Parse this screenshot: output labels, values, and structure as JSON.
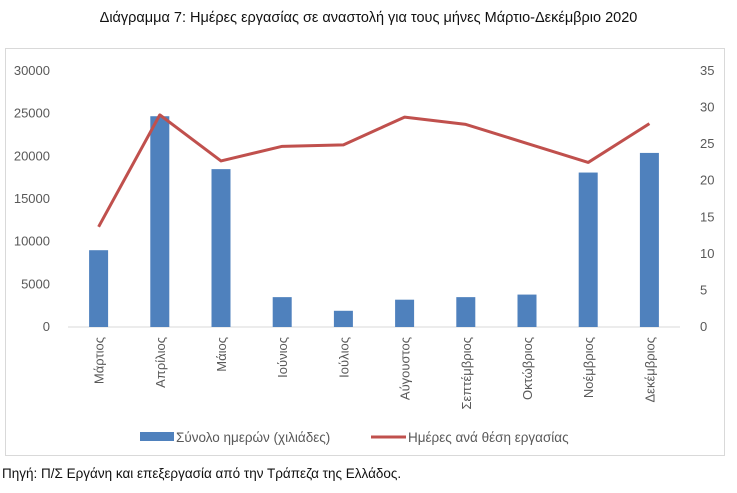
{
  "title": "Διάγραμμα 7: Ημέρες εργασίας σε αναστολή για τους μήνες Μάρτιο-Δεκέμβριο 2020",
  "source": "Πηγή: Π/Σ Εργάνη και επεξεργασία από την Τράπεζα της Ελλάδος.",
  "colors": {
    "bar": "#4f81bd",
    "line": "#c0504d",
    "axis": "#d9d9d9",
    "text": "#595959"
  },
  "chart_data": {
    "type": "bar",
    "categories": [
      "Μάρτιος",
      "Απρίλιος",
      "Μάιος",
      "Ιούνιος",
      "Ιούλιος",
      "Αύγουστος",
      "Σεπτέμβριος",
      "Οκτώβριος",
      "Νοέμβριος",
      "Δεκέμβριος"
    ],
    "series": [
      {
        "name": "Σύνολο ημερών (χιλιάδες)",
        "type": "bar",
        "axis": "left",
        "values": [
          9000,
          24700,
          18500,
          3500,
          1900,
          3200,
          3500,
          3800,
          18100,
          20400
        ]
      },
      {
        "name": "Ημέρες ανά θέση εργασίας",
        "type": "line",
        "axis": "right",
        "values": [
          13.7,
          29.0,
          22.7,
          24.7,
          24.9,
          28.7,
          27.7,
          25.1,
          22.5,
          27.8
        ]
      }
    ],
    "left_axis": {
      "min": 0,
      "max": 30000,
      "step": 5000,
      "ticks": [
        "0",
        "5000",
        "10000",
        "15000",
        "20000",
        "25000",
        "30000"
      ]
    },
    "right_axis": {
      "min": 0,
      "max": 35,
      "step": 5,
      "ticks": [
        "0",
        "5",
        "10",
        "15",
        "20",
        "25",
        "30",
        "35"
      ]
    },
    "legend_position": "bottom",
    "grid": false
  }
}
